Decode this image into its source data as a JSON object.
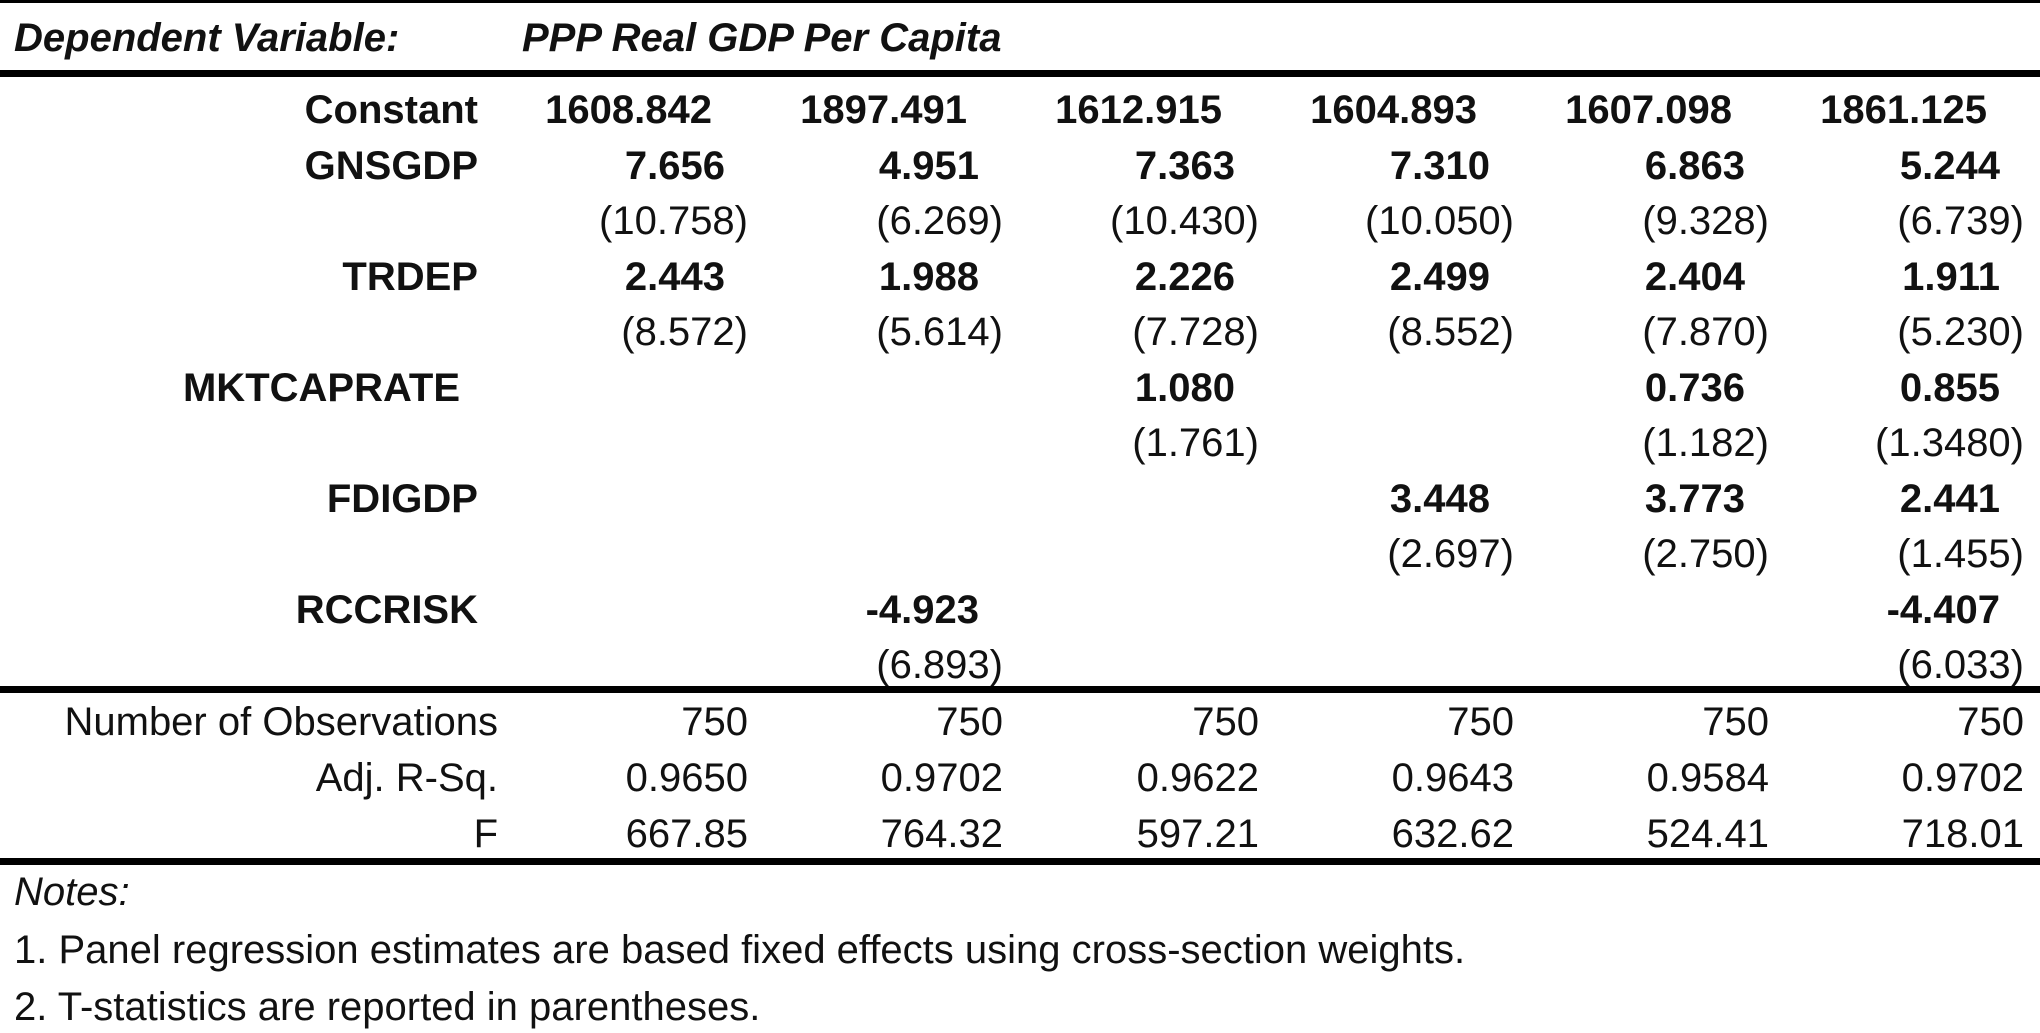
{
  "header": {
    "dependent_variable_label": "Dependent Variable:",
    "dependent_variable_value": "PPP Real GDP Per Capita"
  },
  "constant": {
    "label": "Constant",
    "values": [
      "1608.842",
      "1897.491",
      "1612.915",
      "1604.893",
      "1607.098",
      "1861.125"
    ]
  },
  "variables": [
    {
      "label": "GNSGDP",
      "coefs": [
        "7.656",
        "4.951",
        "7.363",
        "7.310",
        "6.863",
        "5.244"
      ],
      "tstats": [
        "(10.758)",
        "(6.269)",
        "(10.430)",
        "(10.050)",
        "(9.328)",
        "(6.739)"
      ]
    },
    {
      "label": "TRDEP",
      "coefs": [
        "2.443",
        "1.988",
        "2.226",
        "2.499",
        "2.404",
        "1.911"
      ],
      "tstats": [
        "(8.572)",
        "(5.614)",
        "(7.728)",
        "(8.552)",
        "(7.870)",
        "(5.230)"
      ]
    },
    {
      "label": "MKTCAPRATE",
      "coefs": [
        "",
        "",
        "1.080",
        "",
        "0.736",
        "0.855"
      ],
      "tstats": [
        "",
        "",
        "(1.761)",
        "",
        "(1.182)",
        "(1.3480)"
      ]
    },
    {
      "label": "FDIGDP",
      "coefs": [
        "",
        "",
        "",
        "3.448",
        "3.773",
        "2.441"
      ],
      "tstats": [
        "",
        "",
        "",
        "(2.697)",
        "(2.750)",
        "(1.455)"
      ]
    },
    {
      "label": "RCCRISK",
      "coefs": [
        "",
        "-4.923",
        "",
        "",
        "",
        "-4.407"
      ],
      "tstats": [
        "",
        "(6.893)",
        "",
        "",
        "",
        "(6.033)"
      ]
    }
  ],
  "stats": [
    {
      "label": "Number of Observations",
      "values": [
        "750",
        "750",
        "750",
        "750",
        "750",
        "750"
      ]
    },
    {
      "label": "Adj. R-Sq.",
      "values": [
        "0.9650",
        "0.9702",
        "0.9622",
        "0.9643",
        "0.9584",
        "0.9702"
      ]
    },
    {
      "label": "F",
      "values": [
        "667.85",
        "764.32",
        "597.21",
        "632.62",
        "524.41",
        "718.01"
      ]
    }
  ],
  "notes": {
    "title": "Notes:",
    "items": [
      "1. Panel regression estimates are based fixed effects using cross-section weights.",
      "2. T-statistics are reported in parentheses."
    ]
  }
}
